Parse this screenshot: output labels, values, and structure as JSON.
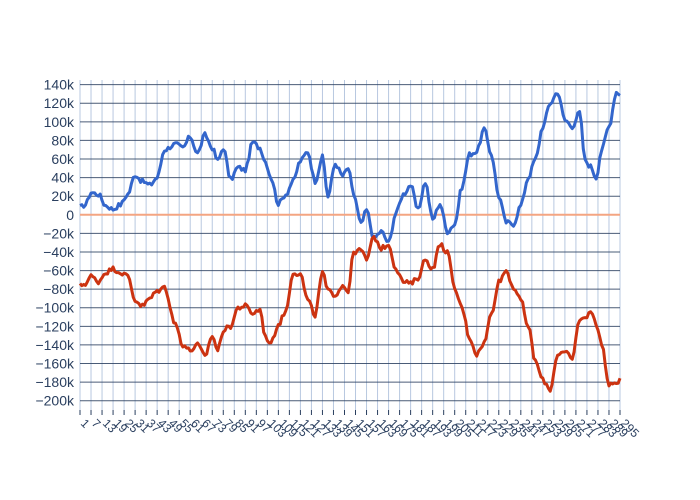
{
  "chart_data": {
    "type": "line",
    "xlabel": "",
    "ylabel": "",
    "ylim": [
      -210000,
      145000
    ],
    "yticks": [
      140000,
      120000,
      100000,
      80000,
      60000,
      40000,
      20000,
      0,
      -20000,
      -40000,
      -60000,
      -80000,
      -100000,
      -120000,
      -140000,
      -160000,
      -180000,
      -200000
    ],
    "ytick_labels": [
      "140k",
      "120k",
      "100k",
      "80k",
      "60k",
      "40k",
      "20k",
      "0",
      "−20k",
      "−40k",
      "−60k",
      "−80k",
      "−100k",
      "−120k",
      "−140k",
      "−160k",
      "−180k",
      "−200k"
    ],
    "zero_line_color": "#f4a582",
    "grid": true,
    "background": "#ffffff",
    "n_points": 295,
    "series": [
      {
        "color": "#3366cc",
        "keypoints": [
          [
            0,
            8000
          ],
          [
            3,
            11000
          ],
          [
            6,
            24000
          ],
          [
            10,
            22000
          ],
          [
            14,
            10000
          ],
          [
            18,
            6000
          ],
          [
            22,
            11000
          ],
          [
            26,
            22000
          ],
          [
            30,
            43000
          ],
          [
            34,
            36000
          ],
          [
            38,
            32000
          ],
          [
            42,
            40000
          ],
          [
            46,
            70000
          ],
          [
            52,
            76000
          ],
          [
            56,
            72000
          ],
          [
            60,
            84000
          ],
          [
            64,
            66000
          ],
          [
            68,
            86000
          ],
          [
            72,
            72000
          ],
          [
            75,
            58000
          ],
          [
            78,
            72000
          ],
          [
            82,
            38000
          ],
          [
            86,
            51000
          ],
          [
            90,
            48000
          ],
          [
            94,
            78000
          ],
          [
            98,
            72000
          ],
          [
            101,
            57000
          ],
          [
            104,
            40000
          ],
          [
            108,
            12000
          ],
          [
            112,
            22000
          ],
          [
            116,
            36000
          ],
          [
            120,
            58000
          ],
          [
            124,
            68000
          ],
          [
            128,
            36000
          ],
          [
            132,
            62000
          ],
          [
            135,
            20000
          ],
          [
            139,
            55000
          ],
          [
            143,
            42000
          ],
          [
            146,
            50000
          ],
          [
            149,
            22000
          ],
          [
            153,
            -10000
          ],
          [
            156,
            5000
          ],
          [
            160,
            -25000
          ],
          [
            164,
            -18000
          ],
          [
            168,
            -30000
          ],
          [
            172,
            2000
          ],
          [
            176,
            22000
          ],
          [
            180,
            32000
          ],
          [
            184,
            5000
          ],
          [
            188,
            35000
          ],
          [
            192,
            -5000
          ],
          [
            196,
            12000
          ],
          [
            200,
            -18000
          ],
          [
            204,
            -10000
          ],
          [
            208,
            30000
          ],
          [
            212,
            65000
          ],
          [
            216,
            68000
          ],
          [
            220,
            92000
          ],
          [
            224,
            65000
          ],
          [
            228,
            20000
          ],
          [
            232,
            -8000
          ],
          [
            236,
            -10000
          ],
          [
            240,
            10000
          ],
          [
            244,
            40000
          ],
          [
            248,
            60000
          ],
          [
            252,
            95000
          ],
          [
            256,
            120000
          ],
          [
            260,
            132000
          ],
          [
            264,
            102000
          ],
          [
            268,
            95000
          ],
          [
            272,
            110000
          ],
          [
            275,
            58000
          ],
          [
            278,
            52000
          ],
          [
            281,
            40000
          ],
          [
            284,
            70000
          ],
          [
            288,
            95000
          ],
          [
            292,
            132000
          ],
          [
            294,
            130000
          ]
        ]
      },
      {
        "color": "#cc3311",
        "keypoints": [
          [
            0,
            -76000
          ],
          [
            3,
            -74000
          ],
          [
            6,
            -66000
          ],
          [
            10,
            -72000
          ],
          [
            14,
            -62000
          ],
          [
            18,
            -58000
          ],
          [
            22,
            -62000
          ],
          [
            26,
            -66000
          ],
          [
            30,
            -92000
          ],
          [
            34,
            -98000
          ],
          [
            38,
            -90000
          ],
          [
            42,
            -82000
          ],
          [
            46,
            -78000
          ],
          [
            52,
            -118000
          ],
          [
            56,
            -140000
          ],
          [
            60,
            -146000
          ],
          [
            64,
            -140000
          ],
          [
            68,
            -152000
          ],
          [
            72,
            -130000
          ],
          [
            75,
            -146000
          ],
          [
            78,
            -124000
          ],
          [
            82,
            -120000
          ],
          [
            86,
            -100000
          ],
          [
            90,
            -98000
          ],
          [
            94,
            -106000
          ],
          [
            98,
            -102000
          ],
          [
            101,
            -132000
          ],
          [
            104,
            -138000
          ],
          [
            108,
            -118000
          ],
          [
            112,
            -104000
          ],
          [
            116,
            -62000
          ],
          [
            120,
            -64000
          ],
          [
            124,
            -92000
          ],
          [
            128,
            -108000
          ],
          [
            132,
            -62000
          ],
          [
            135,
            -82000
          ],
          [
            139,
            -86000
          ],
          [
            143,
            -76000
          ],
          [
            146,
            -82000
          ],
          [
            149,
            -40000
          ],
          [
            153,
            -38000
          ],
          [
            156,
            -48000
          ],
          [
            160,
            -24000
          ],
          [
            164,
            -36000
          ],
          [
            168,
            -32000
          ],
          [
            172,
            -58000
          ],
          [
            176,
            -72000
          ],
          [
            180,
            -74000
          ],
          [
            184,
            -68000
          ],
          [
            188,
            -48000
          ],
          [
            192,
            -58000
          ],
          [
            196,
            -32000
          ],
          [
            200,
            -40000
          ],
          [
            204,
            -80000
          ],
          [
            208,
            -100000
          ],
          [
            212,
            -132000
          ],
          [
            216,
            -150000
          ],
          [
            220,
            -138000
          ],
          [
            224,
            -106000
          ],
          [
            228,
            -72000
          ],
          [
            232,
            -60000
          ],
          [
            236,
            -78000
          ],
          [
            240,
            -92000
          ],
          [
            244,
            -120000
          ],
          [
            248,
            -158000
          ],
          [
            252,
            -178000
          ],
          [
            256,
            -188000
          ],
          [
            260,
            -150000
          ],
          [
            264,
            -148000
          ],
          [
            268,
            -155000
          ],
          [
            272,
            -112000
          ],
          [
            275,
            -112000
          ],
          [
            278,
            -102000
          ],
          [
            281,
            -118000
          ],
          [
            284,
            -138000
          ],
          [
            288,
            -184000
          ],
          [
            292,
            -180000
          ],
          [
            294,
            -178000
          ]
        ]
      }
    ],
    "xtick_labels": [
      "1",
      "7",
      "13",
      "19",
      "25",
      "31",
      "37",
      "43",
      "49",
      "55",
      "61",
      "67",
      "73",
      "79",
      "85",
      "91",
      "97",
      "103",
      "109",
      "115",
      "121",
      "127",
      "133",
      "139",
      "145",
      "151",
      "157",
      "163",
      "169",
      "175",
      "181",
      "187",
      "193",
      "199",
      "205",
      "211",
      "217",
      "223",
      "229",
      "235",
      "241",
      "247",
      "253",
      "259",
      "265",
      "271",
      "277",
      "283",
      "289",
      "295"
    ]
  }
}
